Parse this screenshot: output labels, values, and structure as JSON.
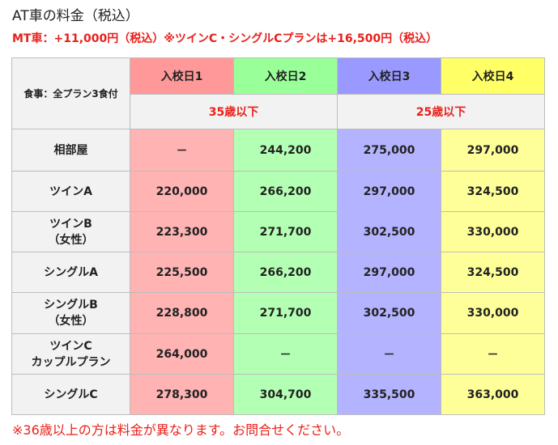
{
  "title": "AT車の料金（税込）",
  "notice": "MT車：+11,000円（税込）※ツインC・シングルCプランは+16,500円（税込）",
  "table": {
    "corner_label": "食事：全プラン3食付",
    "dates": [
      "入校日1",
      "入校日2",
      "入校日3",
      "入校日4"
    ],
    "age_groups": [
      "35歳以下",
      "25歳以下"
    ],
    "rows": [
      {
        "line1": "相部屋",
        "line2": "",
        "prices": [
          "－",
          "244,200",
          "275,000",
          "297,000"
        ]
      },
      {
        "line1": "ツインA",
        "line2": "",
        "prices": [
          "220,000",
          "266,200",
          "297,000",
          "324,500"
        ]
      },
      {
        "line1": "ツインB",
        "line2": "（女性）",
        "prices": [
          "223,300",
          "271,700",
          "302,500",
          "330,000"
        ]
      },
      {
        "line1": "シングルA",
        "line2": "",
        "prices": [
          "225,500",
          "266,200",
          "297,000",
          "324,500"
        ]
      },
      {
        "line1": "シングルB",
        "line2": "（女性）",
        "prices": [
          "228,800",
          "271,700",
          "302,500",
          "330,000"
        ]
      },
      {
        "line1": "ツインC",
        "line2": "カップルプラン",
        "prices": [
          "264,000",
          "－",
          "－",
          "－"
        ]
      },
      {
        "line1": "シングルC",
        "line2": "",
        "prices": [
          "278,300",
          "304,700",
          "335,500",
          "363,000"
        ]
      }
    ]
  },
  "footnote": "※36歳以上の方は料金が異なります。お問合せください。",
  "colors": {
    "accent_red": "#e8201a",
    "date1": "#ff9999",
    "date2": "#99ff99",
    "date3": "#9999ff",
    "date4": "#ffff66",
    "col1": "#ffb3b3",
    "col2": "#b3ffb3",
    "col3": "#b3b3ff",
    "col4": "#ffff99"
  }
}
